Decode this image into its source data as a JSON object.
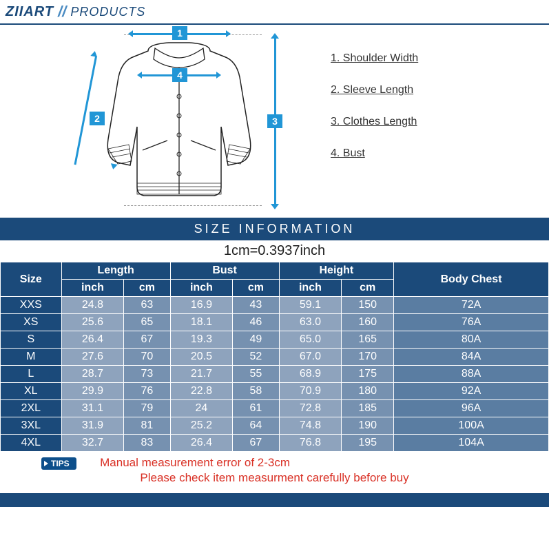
{
  "header": {
    "brand": "ZIIART",
    "separator": "//",
    "products": "PRODUCTS"
  },
  "legend": {
    "item1": "1. Shoulder Width",
    "item2": "2. Sleeve Length",
    "item3": "3. Clothes Length",
    "item4": "4. Bust"
  },
  "badges": {
    "n1": "1",
    "n2": "2",
    "n3": "3",
    "n4": "4"
  },
  "sizeinfo_title": "SIZE INFORMATION",
  "conversion": "1cm=0.3937inch",
  "table": {
    "headers": {
      "size": "Size",
      "length": "Length",
      "bust": "Bust",
      "height": "Height",
      "bodychest": "Body Chest",
      "inch": "inch",
      "cm": "cm"
    },
    "rows": [
      {
        "size": "XXS",
        "length_in": "24.8",
        "length_cm": "63",
        "bust_in": "16.9",
        "bust_cm": "43",
        "height_in": "59.1",
        "height_cm": "150",
        "bodychest": "72A"
      },
      {
        "size": "XS",
        "length_in": "25.6",
        "length_cm": "65",
        "bust_in": "18.1",
        "bust_cm": "46",
        "height_in": "63.0",
        "height_cm": "160",
        "bodychest": "76A"
      },
      {
        "size": "S",
        "length_in": "26.4",
        "length_cm": "67",
        "bust_in": "19.3",
        "bust_cm": "49",
        "height_in": "65.0",
        "height_cm": "165",
        "bodychest": "80A"
      },
      {
        "size": "M",
        "length_in": "27.6",
        "length_cm": "70",
        "bust_in": "20.5",
        "bust_cm": "52",
        "height_in": "67.0",
        "height_cm": "170",
        "bodychest": "84A"
      },
      {
        "size": "L",
        "length_in": "28.7",
        "length_cm": "73",
        "bust_in": "21.7",
        "bust_cm": "55",
        "height_in": "68.9",
        "height_cm": "175",
        "bodychest": "88A"
      },
      {
        "size": "XL",
        "length_in": "29.9",
        "length_cm": "76",
        "bust_in": "22.8",
        "bust_cm": "58",
        "height_in": "70.9",
        "height_cm": "180",
        "bodychest": "92A"
      },
      {
        "size": "2XL",
        "length_in": "31.1",
        "length_cm": "79",
        "bust_in": "24",
        "bust_cm": "61",
        "height_in": "72.8",
        "height_cm": "185",
        "bodychest": "96A"
      },
      {
        "size": "3XL",
        "length_in": "31.9",
        "length_cm": "81",
        "bust_in": "25.2",
        "bust_cm": "64",
        "height_in": "74.8",
        "height_cm": "190",
        "bodychest": "100A"
      },
      {
        "size": "4XL",
        "length_in": "32.7",
        "length_cm": "83",
        "bust_in": "26.4",
        "bust_cm": "67",
        "height_in": "76.8",
        "height_cm": "195",
        "bodychest": "104A"
      }
    ]
  },
  "tips_label": "TIPS",
  "warn_line1": "Manual measurement error of 2-3cm",
  "warn_line2": "Please check item measurment carefully before buy",
  "styling": {
    "brand_color": "#1b4a7a",
    "accent_blue": "#2196d6",
    "row_alt_a": "#8ea3bd",
    "row_alt_b": "#7691b0",
    "bodychest_bg": "#5a7da2",
    "warn_color": "#d93025"
  }
}
